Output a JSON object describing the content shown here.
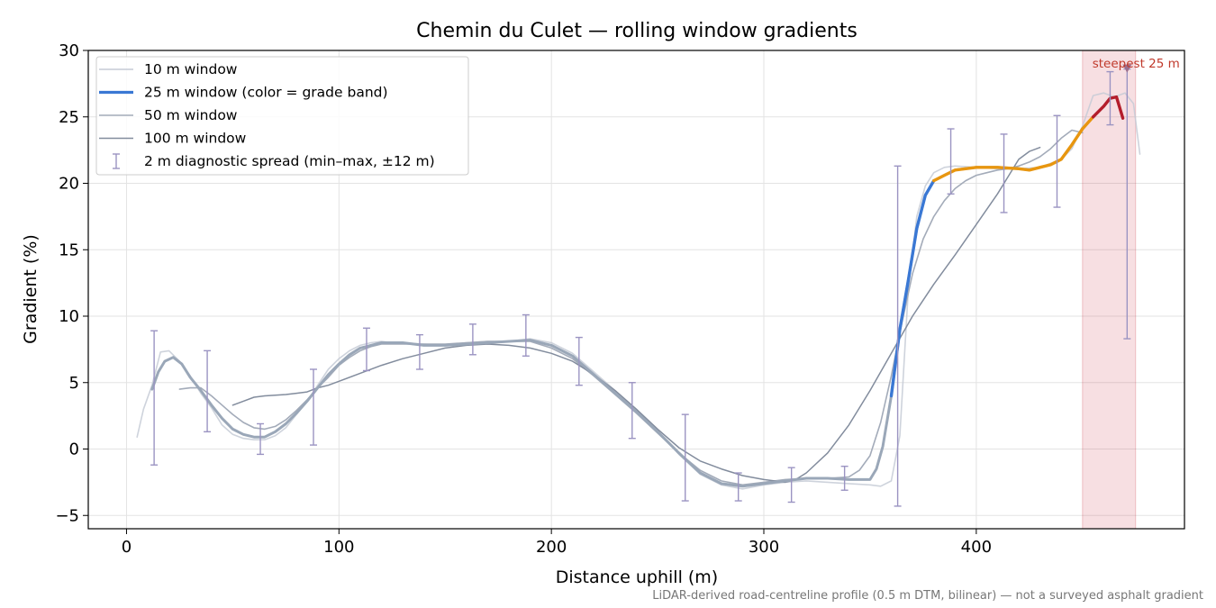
{
  "chart_data": {
    "type": "line",
    "title": "Chemin du Culet — rolling window gradients",
    "xlabel": "Distance uphill (m)",
    "ylabel": "Gradient (%)",
    "xlim": [
      -18,
      498
    ],
    "ylim": [
      -6,
      30
    ],
    "x_ticks": [
      0,
      100,
      200,
      300,
      400
    ],
    "y_ticks": [
      -5,
      0,
      5,
      10,
      15,
      20,
      25,
      30
    ],
    "grid": true,
    "legend_position": "top-left",
    "footnote": "LiDAR-derived road-centreline profile (0.5 m DTM, bilinear) — not a surveyed asphalt gradient",
    "series": [
      {
        "name": "10 m window",
        "color": "#c5cbd6",
        "x": [
          5,
          8,
          12,
          16,
          20,
          25,
          30,
          35,
          40,
          45,
          50,
          55,
          60,
          65,
          70,
          75,
          80,
          85,
          90,
          95,
          100,
          105,
          110,
          115,
          120,
          125,
          130,
          140,
          150,
          160,
          170,
          180,
          190,
          200,
          210,
          220,
          230,
          240,
          250,
          260,
          270,
          280,
          290,
          300,
          310,
          320,
          330,
          340,
          350,
          355,
          360,
          364,
          368,
          372,
          376,
          380,
          385,
          390,
          400,
          410,
          420,
          430,
          440,
          445,
          450,
          455,
          460,
          465,
          470,
          474,
          477
        ],
        "y": [
          0.9,
          3.0,
          4.8,
          7.3,
          7.4,
          6.6,
          5.5,
          4.2,
          3.1,
          1.8,
          1.1,
          0.8,
          0.7,
          0.7,
          1.0,
          1.6,
          2.6,
          3.6,
          4.8,
          6.0,
          6.8,
          7.4,
          7.8,
          8.0,
          8.1,
          8.0,
          8.0,
          7.9,
          7.8,
          8.0,
          8.1,
          8.1,
          8.3,
          8.0,
          7.2,
          5.8,
          4.4,
          3.0,
          1.4,
          -0.4,
          -1.9,
          -2.7,
          -3.0,
          -2.7,
          -2.5,
          -2.4,
          -2.5,
          -2.6,
          -2.7,
          -2.8,
          -2.4,
          1.0,
          12.0,
          17.5,
          19.8,
          20.8,
          21.2,
          21.3,
          21.2,
          21.1,
          21.1,
          21.2,
          21.8,
          22.6,
          24.3,
          26.6,
          26.8,
          26.5,
          26.8,
          26.0,
          22.2
        ]
      },
      {
        "name": "25 m window (color = grade band)",
        "color": "#9aa7b8",
        "x": [
          12,
          15,
          18,
          22,
          26,
          30,
          35,
          40,
          45,
          50,
          55,
          60,
          65,
          70,
          75,
          80,
          85,
          90,
          95,
          100,
          105,
          110,
          115,
          120,
          130,
          140,
          150,
          160,
          170,
          180,
          190,
          200,
          210,
          220,
          230,
          240,
          250,
          260,
          270,
          280,
          290,
          300,
          310,
          320,
          330,
          340,
          345,
          350,
          353,
          356,
          360,
          364,
          368,
          372,
          376,
          380,
          385,
          390,
          400,
          410,
          420,
          425,
          430,
          435,
          440,
          445,
          450,
          455,
          460,
          463,
          466,
          469
        ],
        "y": [
          4.5,
          5.8,
          6.6,
          6.9,
          6.4,
          5.4,
          4.4,
          3.3,
          2.3,
          1.5,
          1.1,
          0.9,
          0.9,
          1.3,
          1.9,
          2.7,
          3.6,
          4.6,
          5.6,
          6.4,
          7.1,
          7.6,
          7.8,
          8.0,
          8.0,
          7.8,
          7.8,
          7.9,
          8.0,
          8.1,
          8.2,
          7.8,
          7.0,
          5.6,
          4.2,
          2.8,
          1.3,
          -0.3,
          -1.8,
          -2.6,
          -2.8,
          -2.6,
          -2.4,
          -2.2,
          -2.2,
          -2.3,
          -2.3,
          -2.3,
          -1.5,
          0.2,
          4.0,
          9.0,
          12.7,
          16.6,
          19.1,
          20.2,
          20.6,
          21.0,
          21.2,
          21.2,
          21.1,
          21.0,
          21.2,
          21.4,
          21.8,
          22.9,
          24.1,
          25.0,
          25.8,
          26.4,
          26.5,
          24.9
        ],
        "band_colors": [
          {
            "from_x": 360,
            "to_x": 380,
            "color": "#3a78d4"
          },
          {
            "from_x": 380,
            "to_x": 455,
            "color": "#e8960f"
          },
          {
            "from_x": 455,
            "to_x": 470,
            "color": "#b41d2b"
          }
        ]
      },
      {
        "name": "50 m window",
        "color": "#a3abb9",
        "x": [
          25,
          30,
          35,
          40,
          45,
          50,
          55,
          60,
          65,
          70,
          75,
          80,
          85,
          90,
          95,
          100,
          105,
          110,
          115,
          120,
          130,
          140,
          150,
          160,
          170,
          180,
          190,
          200,
          210,
          220,
          230,
          240,
          250,
          260,
          270,
          280,
          290,
          300,
          310,
          320,
          330,
          340,
          345,
          350,
          355,
          360,
          365,
          370,
          375,
          380,
          385,
          390,
          395,
          400,
          405,
          410,
          415,
          420,
          425,
          430,
          435,
          440,
          445,
          450
        ],
        "y": [
          4.5,
          4.6,
          4.6,
          4.0,
          3.3,
          2.6,
          2.0,
          1.6,
          1.5,
          1.7,
          2.2,
          2.9,
          3.7,
          4.6,
          5.4,
          6.3,
          6.9,
          7.4,
          7.7,
          7.9,
          7.9,
          7.9,
          7.9,
          8.0,
          8.1,
          8.1,
          8.1,
          7.6,
          6.8,
          5.5,
          4.1,
          2.7,
          1.2,
          -0.3,
          -1.6,
          -2.4,
          -2.7,
          -2.5,
          -2.3,
          -2.2,
          -2.2,
          -2.1,
          -1.6,
          -0.5,
          2.0,
          5.5,
          9.5,
          13.2,
          15.8,
          17.5,
          18.7,
          19.6,
          20.2,
          20.6,
          20.8,
          21.0,
          21.1,
          21.3,
          21.6,
          22.0,
          22.6,
          23.4,
          24.0,
          23.8
        ]
      },
      {
        "name": "100 m window",
        "color": "#828c9d",
        "x": [
          50,
          55,
          60,
          65,
          70,
          75,
          80,
          85,
          90,
          95,
          100,
          110,
          120,
          130,
          140,
          150,
          160,
          170,
          180,
          190,
          200,
          210,
          220,
          230,
          240,
          250,
          260,
          270,
          280,
          290,
          300,
          310,
          315,
          320,
          330,
          340,
          350,
          360,
          370,
          380,
          390,
          400,
          410,
          415,
          420,
          425,
          430
        ],
        "y": [
          3.3,
          3.6,
          3.9,
          4.0,
          4.05,
          4.1,
          4.2,
          4.3,
          4.6,
          4.8,
          5.1,
          5.7,
          6.3,
          6.8,
          7.2,
          7.6,
          7.8,
          7.9,
          7.8,
          7.6,
          7.2,
          6.6,
          5.6,
          4.4,
          3.0,
          1.5,
          0.1,
          -0.9,
          -1.5,
          -2.0,
          -2.3,
          -2.5,
          -2.3,
          -1.8,
          -0.3,
          1.8,
          4.4,
          7.2,
          10.0,
          12.4,
          14.6,
          16.9,
          19.2,
          20.5,
          21.8,
          22.4,
          22.7
        ]
      },
      {
        "name": "2 m diagnostic spread (min–max, ±12 m)",
        "color": "#9b94c2",
        "x": [
          13,
          38,
          63,
          88,
          113,
          138,
          163,
          188,
          213,
          238,
          263,
          288,
          313,
          338,
          363,
          388,
          413,
          438,
          463,
          471
        ],
        "ymin": [
          -1.2,
          1.3,
          -0.4,
          0.3,
          5.9,
          6.0,
          7.1,
          7.0,
          4.8,
          0.8,
          -3.9,
          -3.9,
          -4.0,
          -3.1,
          -4.3,
          19.2,
          17.8,
          18.2,
          24.4,
          8.3
        ],
        "ymax": [
          8.9,
          7.4,
          1.9,
          6.0,
          9.1,
          8.6,
          9.4,
          10.1,
          8.4,
          5.0,
          2.6,
          -1.8,
          -1.4,
          -1.3,
          21.3,
          24.1,
          23.7,
          25.1,
          28.4,
          28.6
        ]
      }
    ],
    "annotations": {
      "steepest_label": "steepest 25 m",
      "steepest_span": [
        450,
        475
      ],
      "steepest_marker": {
        "x": 471,
        "y": 28.6
      },
      "color": "#c62b3a"
    }
  }
}
